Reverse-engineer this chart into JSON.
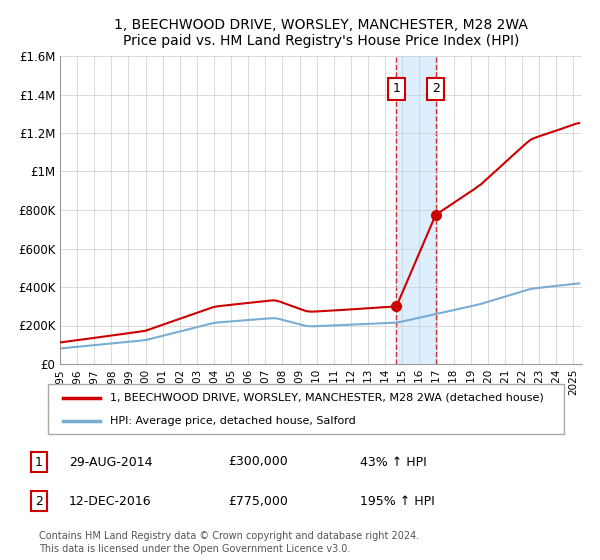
{
  "title1": "1, BEECHWOOD DRIVE, WORSLEY, MANCHESTER, M28 2WA",
  "title2": "Price paid vs. HM Land Registry's House Price Index (HPI)",
  "ylim": [
    0,
    1600000
  ],
  "yticks": [
    0,
    200000,
    400000,
    600000,
    800000,
    1000000,
    1200000,
    1400000,
    1600000
  ],
  "legend_entry1": "1, BEECHWOOD DRIVE, WORSLEY, MANCHESTER, M28 2WA (detached house)",
  "legend_entry2": "HPI: Average price, detached house, Salford",
  "purchase1_label": "1",
  "purchase1_date": "29-AUG-2014",
  "purchase1_price": "£300,000",
  "purchase1_hpi": "43% ↑ HPI",
  "purchase1_x": 2014.66,
  "purchase1_y": 300000,
  "purchase2_label": "2",
  "purchase2_date": "12-DEC-2016",
  "purchase2_price": "£775,000",
  "purchase2_hpi": "195% ↑ HPI",
  "purchase2_x": 2016.95,
  "purchase2_y": 775000,
  "highlight_x1": 2014.66,
  "highlight_x2": 2016.95,
  "footer": "Contains HM Land Registry data © Crown copyright and database right 2024.\nThis data is licensed under the Open Government Licence v3.0.",
  "hpi_color": "#7aadd4",
  "price_color": "#cc0000",
  "box_color": "#cc0000",
  "highlight_color": "#ddeeff",
  "xlim_left": 1995,
  "xlim_right": 2025.5
}
